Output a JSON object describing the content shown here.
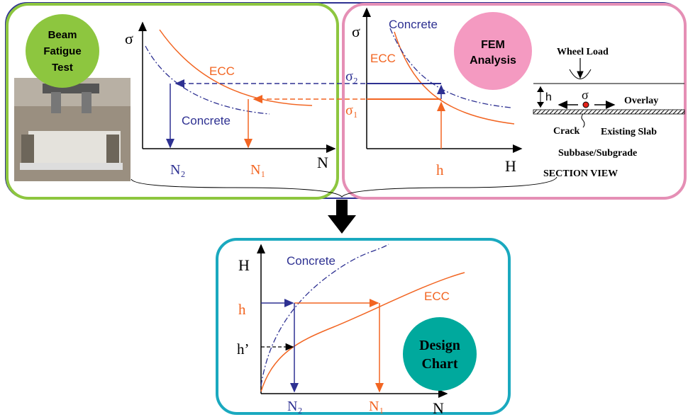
{
  "beam_fatigue": {
    "badge": [
      "Beam",
      "Fatigue",
      "Test"
    ],
    "y_axis": "σ",
    "ecc": "ECC",
    "concrete": "Concrete",
    "n2": "N₂",
    "n1": "N₁",
    "x_axis": "N"
  },
  "fem": {
    "badge": [
      "FEM",
      "Analysis"
    ],
    "y_axis": "σ",
    "concrete": "Concrete",
    "ecc": "ECC",
    "sigma2": "σ₂",
    "sigma1": "σ₁",
    "h": "h",
    "x_axis": "H"
  },
  "section": {
    "wheel_load": "Wheel Load",
    "h": "h",
    "sigma": "σ",
    "overlay": "Overlay",
    "crack": "Crack",
    "existing_slab": "Existing Slab",
    "subbase": "Subbase/Subgrade",
    "caption": "SECTION VIEW"
  },
  "design_chart": {
    "y_axis": "H",
    "concrete": "Concrete",
    "ecc": "ECC",
    "h": "h",
    "h_prime": "h’",
    "badge": [
      "Design",
      "Chart"
    ],
    "n2": "N₂",
    "n1": "N₁",
    "x_axis": "N"
  }
}
